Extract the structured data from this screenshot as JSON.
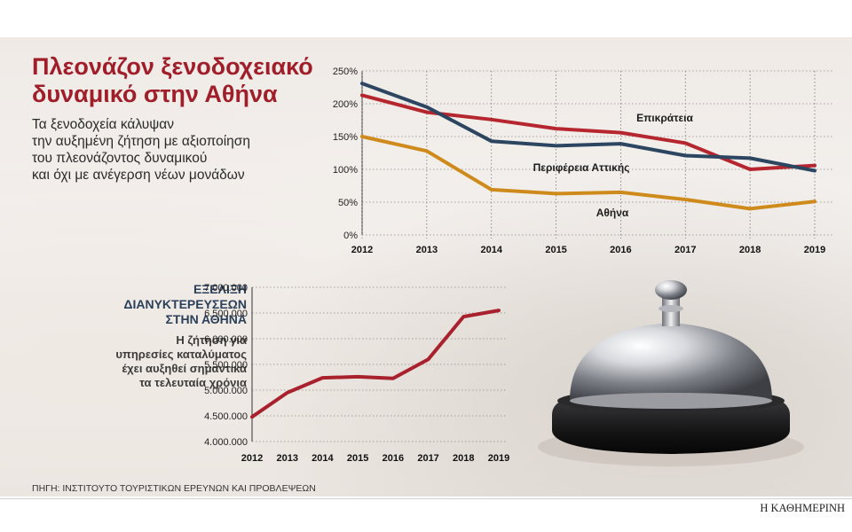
{
  "title": "Πλεονάζον ξενοδοχειακό\nδυναμικό στην Αθήνα",
  "subtitle": "Τα ξενοδοχεία κάλυψαν\nτην αυξημένη ζήτηση με αξιοποίηση\nτου πλεονάζοντος δυναμικού\nκαι όχι με ανέγερση νέων μονάδων",
  "second_chart_heading": "ΕΞΕΛΙΞΗ\nΔΙΑΝΥΚΤΕΡΕΥΣΕΩΝ\nΣΤΗΝ ΑΘΗΝΑ",
  "second_chart_description": "Η ζήτηση για\nυπηρεσίες καταλύματος\nέχει αυξηθεί σημαντικά\nτα τελευταία χρόνια",
  "source": "ΠΗΓΗ: ΙΝΣΤΙΤΟΥΤΟ ΤΟΥΡΙΣΤΙΚΩΝ ΕΡΕΥΝΩΝ ΚΑΙ ΠΡΟΒΛΕΨΕΩΝ",
  "brand": "Η ΚΑΘΗΜΕΡΙΝΗ",
  "chart_data": [
    {
      "type": "line",
      "x": [
        "2012",
        "2013",
        "2014",
        "2015",
        "2016",
        "2017",
        "2018",
        "2019"
      ],
      "ylim": [
        0,
        250
      ],
      "yticks": [
        0,
        50,
        100,
        150,
        200,
        250
      ],
      "ytick_labels": [
        "0%",
        "50%",
        "100%",
        "150%",
        "200%",
        "250%"
      ],
      "grid": "horizontal dotted",
      "series": [
        {
          "name": "Επικράτεια",
          "color": "#b5262f",
          "values": [
            213,
            187,
            176,
            162,
            156,
            140,
            100,
            106
          ]
        },
        {
          "name": "Περιφέρεια Αττικής",
          "color": "#2c4560",
          "values": [
            231,
            195,
            143,
            136,
            139,
            121,
            117,
            98
          ]
        },
        {
          "name": "Αθήνα",
          "color": "#cf8a1c",
          "values": [
            150,
            128,
            69,
            63,
            65,
            54,
            40,
            51
          ]
        }
      ]
    },
    {
      "type": "line",
      "x": [
        "2012",
        "2013",
        "2014",
        "2015",
        "2016",
        "2017",
        "2018",
        "2019"
      ],
      "ylim": [
        4000000,
        7000000
      ],
      "yticks": [
        4000000,
        4500000,
        5000000,
        5500000,
        6000000,
        6500000,
        7000000
      ],
      "ytick_labels": [
        "4.000.000",
        "4.500.000",
        "5.000.000",
        "5.500.000",
        "6.000.000",
        "6.500.000",
        "7.000.000"
      ],
      "grid": "horizontal dotted",
      "series": [
        {
          "color": "#a8212d",
          "values": [
            4480000,
            4950000,
            5240000,
            5260000,
            5230000,
            5600000,
            6430000,
            6550000
          ]
        }
      ]
    }
  ]
}
